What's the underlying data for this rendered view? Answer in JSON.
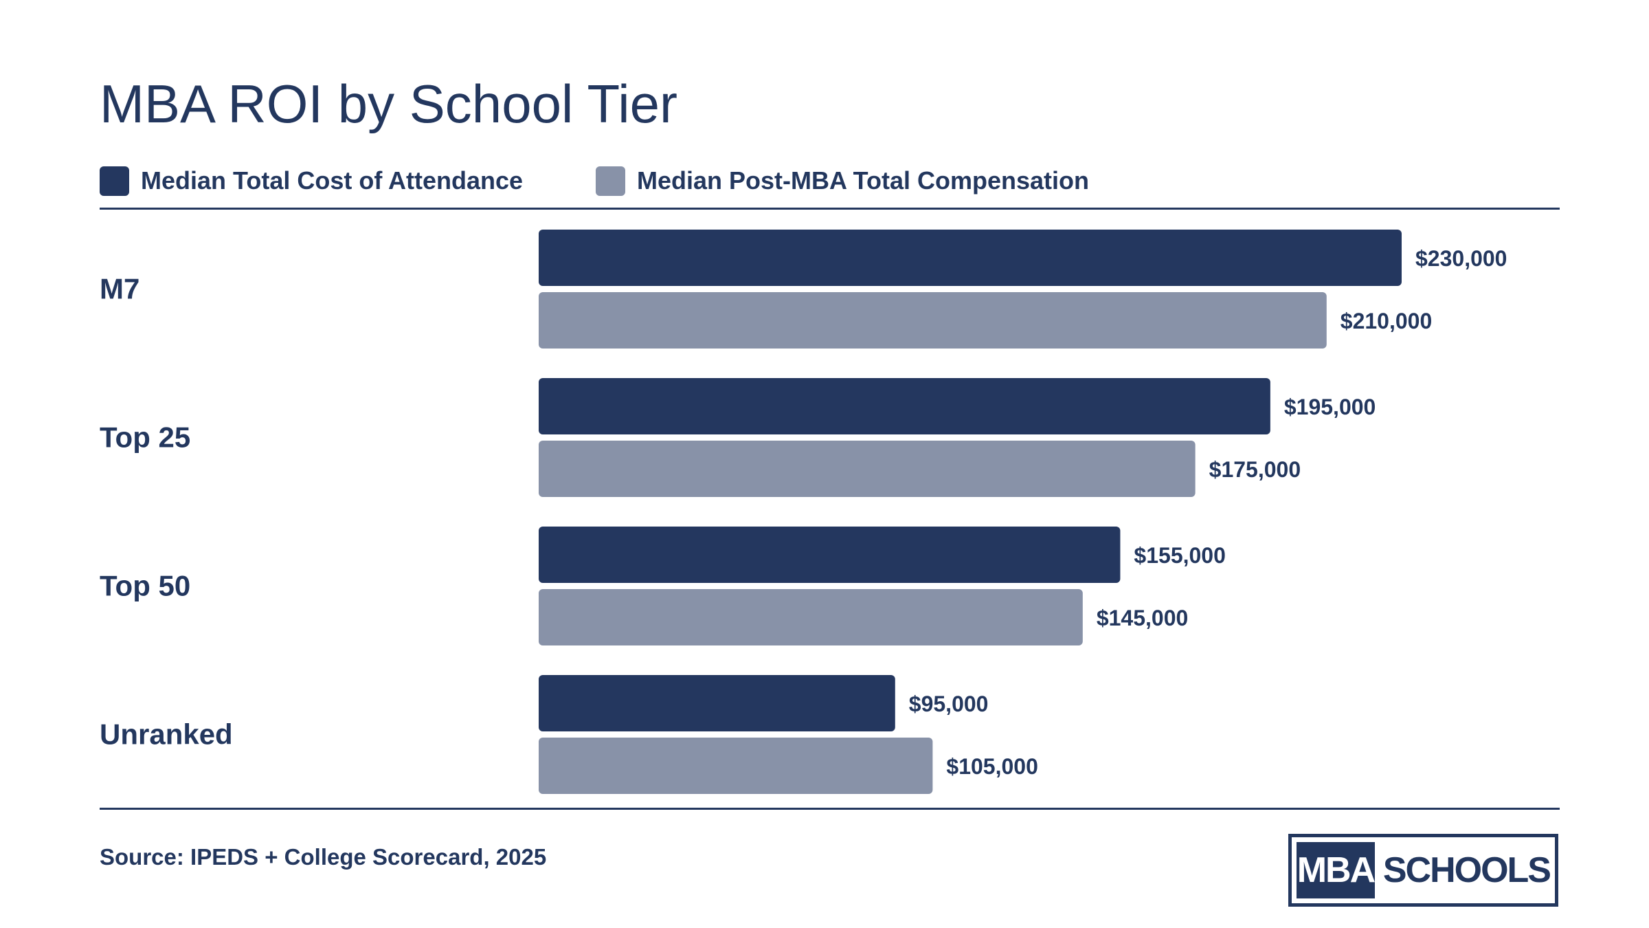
{
  "chart_data": {
    "type": "bar",
    "orientation": "horizontal",
    "title": "MBA ROI by School Tier",
    "categories": [
      "M7",
      "Top 25",
      "Top 50",
      "Unranked"
    ],
    "series": [
      {
        "name": "Median Total Cost of Attendance",
        "color": "#24375f",
        "values": [
          230000,
          195000,
          155000,
          95000
        ],
        "labels": [
          "$230,000",
          "$195,000",
          "$155,000",
          "$95,000"
        ]
      },
      {
        "name": "Median Post-MBA Total Compensation",
        "color": "#8892a8",
        "values": [
          210000,
          175000,
          145000,
          105000
        ],
        "labels": [
          "$210,000",
          "$175,000",
          "$145,000",
          "$105,000"
        ]
      }
    ],
    "xlim": [
      0,
      230000
    ],
    "grid": false,
    "legend_position": "top-left",
    "source": "Source: IPEDS + College Scorecard, 2025"
  },
  "logo": {
    "left": "MBA",
    "right": "SCHOOLS"
  }
}
